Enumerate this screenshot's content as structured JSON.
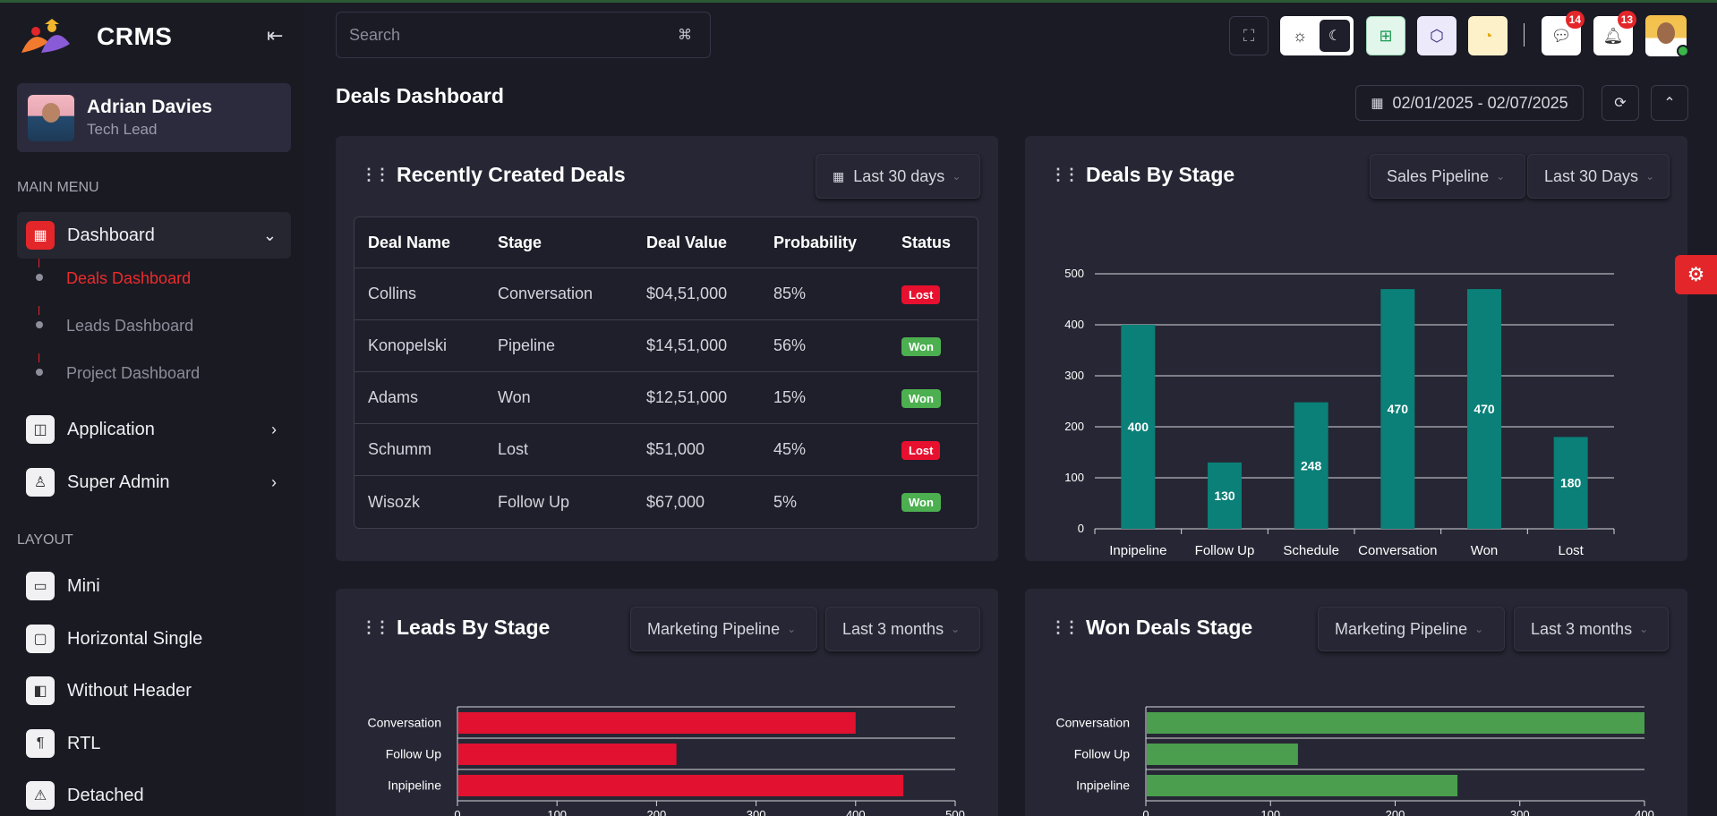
{
  "app": {
    "logo_text": "CRMS"
  },
  "user": {
    "name": "Adrian Davies",
    "role": "Tech Lead"
  },
  "sidebar": {
    "main_menu_label": "MAIN MENU",
    "dashboard_label": "Dashboard",
    "sub_items": [
      "Deals Dashboard",
      "Leads Dashboard",
      "Project Dashboard"
    ],
    "application_label": "Application",
    "super_admin_label": "Super Admin",
    "layout_label": "LAYOUT",
    "layout_items": [
      "Mini",
      "Horizontal Single",
      "Without Header",
      "RTL",
      "Detached"
    ]
  },
  "header": {
    "search_placeholder": "Search",
    "search_shortcut": "⌘",
    "notifications_count": "14",
    "alerts_count": "13"
  },
  "page": {
    "title": "Deals Dashboard",
    "date_range": "02/01/2025 - 02/07/2025"
  },
  "recent_deals": {
    "title": "Recently Created Deals",
    "filter": "Last 30 days",
    "columns": [
      "Deal Name",
      "Stage",
      "Deal Value",
      "Probability",
      "Status"
    ],
    "rows": [
      {
        "name": "Collins",
        "stage": "Conversation",
        "value": "$04,51,000",
        "probability": "85%",
        "status": "Lost"
      },
      {
        "name": "Konopelski",
        "stage": "Pipeline",
        "value": "$14,51,000",
        "probability": "56%",
        "status": "Won"
      },
      {
        "name": "Adams",
        "stage": "Won",
        "value": "$12,51,000",
        "probability": "15%",
        "status": "Won"
      },
      {
        "name": "Schumm",
        "stage": "Lost",
        "value": "$51,000",
        "probability": "45%",
        "status": "Lost"
      },
      {
        "name": "Wisozk",
        "stage": "Follow Up",
        "value": "$67,000",
        "probability": "5%",
        "status": "Won"
      }
    ]
  },
  "deals_by_stage": {
    "title": "Deals By Stage",
    "pipeline": "Sales Pipeline",
    "period": "Last 30 Days"
  },
  "leads_by_stage": {
    "title": "Leads By Stage",
    "pipeline": "Marketing Pipeline",
    "period": "Last 3 months"
  },
  "won_deals_stage": {
    "title": "Won Deals Stage",
    "pipeline": "Marketing Pipeline",
    "period": "Last 3 months"
  },
  "colors": {
    "won": "#4caf50",
    "lost": "#e8102f",
    "bar_teal": "#0a8078",
    "bar_red": "#e1112f",
    "bar_green": "#4a9e4e",
    "accent": "#e3262a"
  },
  "chart_data": [
    {
      "type": "bar",
      "categories": [
        "Inpipeline",
        "Follow Up",
        "Schedule",
        "Conversation",
        "Won",
        "Lost"
      ],
      "values": [
        400,
        130,
        248,
        470,
        470,
        180
      ],
      "ylim": [
        0,
        500
      ],
      "yticks": [
        0,
        100,
        200,
        300,
        400,
        500
      ],
      "data_labels": true,
      "grid": true
    },
    {
      "type": "bar",
      "orientation": "horizontal",
      "categories": [
        "Conversation",
        "Follow Up",
        "Inpipeline"
      ],
      "values": [
        400,
        220,
        448
      ],
      "xlim": [
        0,
        500
      ],
      "xticks": [
        0,
        100,
        200,
        300,
        400,
        500
      ]
    },
    {
      "type": "bar",
      "orientation": "horizontal",
      "categories": [
        "Conversation",
        "Follow Up",
        "Inpipeline"
      ],
      "values": [
        400,
        122,
        250
      ],
      "xlim": [
        0,
        400
      ],
      "xticks": [
        0,
        100,
        200,
        300,
        400
      ]
    }
  ]
}
